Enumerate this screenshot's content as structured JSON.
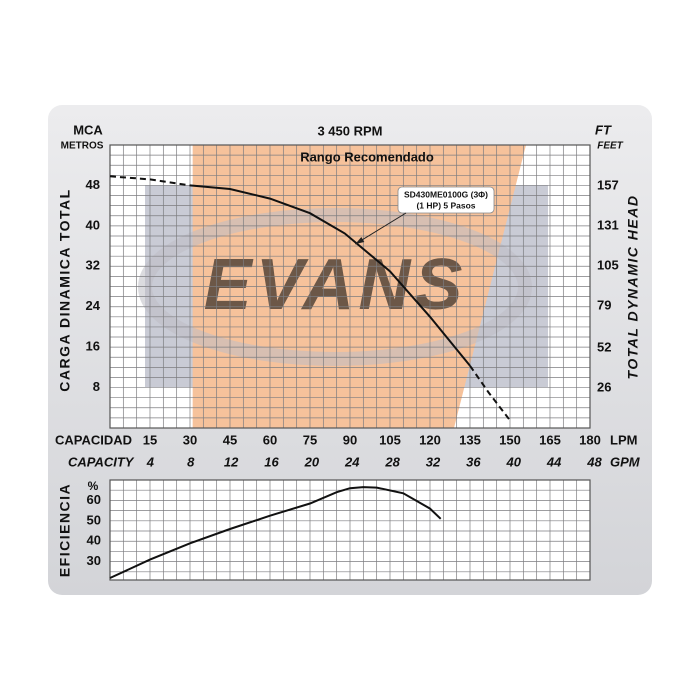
{
  "chart_data": [
    {
      "type": "line",
      "title": "3 450 RPM",
      "y_unit": "MCA",
      "y_unit_sub": "METROS",
      "y_label": "CARGA DINAMICA TOTAL",
      "y2_unit": "FT",
      "y2_unit_sub": "FEET",
      "y2_label": "TOTAL DYNAMIC HEAD",
      "x_label": "CAPACIDAD",
      "x_unit": "LPM",
      "x2_label": "CAPACITY",
      "x2_unit": "GPM",
      "watermark": "EVANS",
      "xlim": [
        0,
        180
      ],
      "xticks": [
        15,
        30,
        45,
        60,
        75,
        90,
        105,
        120,
        135,
        150,
        165,
        180
      ],
      "x2lim": [
        0,
        47.55
      ],
      "x2ticks": [
        4,
        8,
        12,
        16,
        20,
        24,
        28,
        32,
        36,
        40,
        44,
        48
      ],
      "ylim": [
        0,
        56
      ],
      "yticks": [
        8,
        16,
        24,
        32,
        40,
        48
      ],
      "y2lim": [
        0,
        183.7
      ],
      "y2ticks": [
        26,
        52,
        79,
        105,
        131,
        157
      ],
      "xgrid": [
        0,
        5,
        10,
        15,
        20,
        25,
        30,
        35,
        40,
        45,
        50,
        55,
        60,
        65,
        70,
        75,
        80,
        85,
        90,
        95,
        100,
        105,
        110,
        115,
        120,
        125,
        130,
        135,
        140,
        145,
        150,
        155,
        160,
        165,
        170,
        175,
        180
      ],
      "ygrid": [
        0,
        2,
        4,
        6,
        8,
        10,
        12,
        14,
        16,
        18,
        20,
        22,
        24,
        26,
        28,
        30,
        32,
        34,
        36,
        38,
        40,
        42,
        44,
        46,
        48,
        50,
        52,
        54,
        56
      ],
      "recommended_range": {
        "label": "Rango Recomendado",
        "color": "#f6c29b",
        "x_top": [
          31,
          156
        ],
        "x_bottom": [
          31,
          129
        ]
      },
      "annotation": {
        "text": [
          "SD430ME0100G (3Φ)",
          "(1 HP)  5 Pasos"
        ],
        "x": 92,
        "y": 36.4
      },
      "series": [
        {
          "color": "#111111",
          "style": "solid",
          "x": [
            30,
            45,
            60,
            75,
            88,
            105,
            120,
            135
          ],
          "values": [
            48,
            47.3,
            45.4,
            42.5,
            38.5,
            31,
            22,
            12.3
          ]
        },
        {
          "color": "#111111",
          "style": "dashed",
          "x": [
            0,
            15,
            30,
            90,
            135,
            142,
            150
          ],
          "values": [
            49.8,
            49.2,
            48,
            null,
            12.3,
            7,
            1.5
          ]
        }
      ]
    },
    {
      "type": "line",
      "y_label": "EFICIENCIA",
      "y_unit": "%",
      "xlim": [
        0,
        180
      ],
      "ylim": [
        21,
        70
      ],
      "yticks": [
        30,
        40,
        50,
        60
      ],
      "xgrid": [
        0,
        5,
        10,
        15,
        20,
        25,
        30,
        35,
        40,
        45,
        50,
        55,
        60,
        65,
        70,
        75,
        80,
        85,
        90,
        95,
        100,
        105,
        110,
        115,
        120,
        125,
        130,
        135,
        140,
        145,
        150,
        155,
        160,
        165,
        170,
        175,
        180
      ],
      "ygrid": [
        25,
        30,
        35,
        40,
        45,
        50,
        55,
        60,
        65
      ],
      "series": [
        {
          "color": "#111111",
          "style": "solid",
          "x": [
            0,
            15,
            30,
            45,
            60,
            75,
            85,
            90,
            95,
            100,
            110,
            120,
            124
          ],
          "values": [
            22,
            31,
            39,
            46,
            52.5,
            58.5,
            64,
            66,
            66.5,
            66.3,
            63.5,
            56,
            51
          ]
        }
      ]
    }
  ]
}
